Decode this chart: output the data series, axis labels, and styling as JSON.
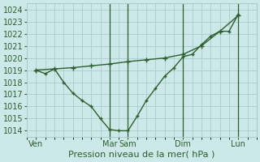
{
  "title": "",
  "xlabel": "Pression niveau de la mer( hPa )",
  "ylabel": "",
  "bg_color": "#cce8e8",
  "grid_color": "#aacccc",
  "line_color": "#2d5f2d",
  "ylim": [
    1013.5,
    1024.5
  ],
  "yticks": [
    1014,
    1015,
    1016,
    1017,
    1018,
    1019,
    1020,
    1021,
    1022,
    1023,
    1024
  ],
  "day_labels": [
    "Ven",
    "Mar",
    "Sam",
    "Dim",
    "Lun"
  ],
  "day_positions": [
    0,
    4,
    5,
    8,
    11
  ],
  "vline_positions": [
    4,
    5,
    8,
    11
  ],
  "xlim": [
    -0.5,
    12
  ],
  "line1_x": [
    0,
    1,
    2,
    3,
    4,
    5,
    6,
    7,
    8,
    9,
    10,
    11
  ],
  "line1_y": [
    1019.0,
    1019.1,
    1019.2,
    1019.35,
    1019.5,
    1019.7,
    1019.85,
    1020.0,
    1020.3,
    1021.0,
    1022.2,
    1023.5
  ],
  "line2_x": [
    0,
    0.5,
    1,
    1.5,
    2,
    2.5,
    3,
    3.5,
    4,
    4.5,
    5,
    5.5,
    6,
    6.5,
    7,
    7.5,
    8,
    8.5,
    9,
    9.5,
    10,
    10.5,
    11
  ],
  "line2_y": [
    1019.0,
    1018.7,
    1019.1,
    1018.0,
    1017.1,
    1016.5,
    1016.0,
    1015.0,
    1014.1,
    1014.0,
    1014.0,
    1015.2,
    1016.5,
    1017.5,
    1018.5,
    1019.2,
    1020.1,
    1020.3,
    1021.1,
    1021.8,
    1022.2,
    1022.2,
    1023.6
  ],
  "figsize": [
    3.2,
    2.0
  ],
  "dpi": 100,
  "xlabel_fontsize": 8,
  "tick_fontsize": 7
}
